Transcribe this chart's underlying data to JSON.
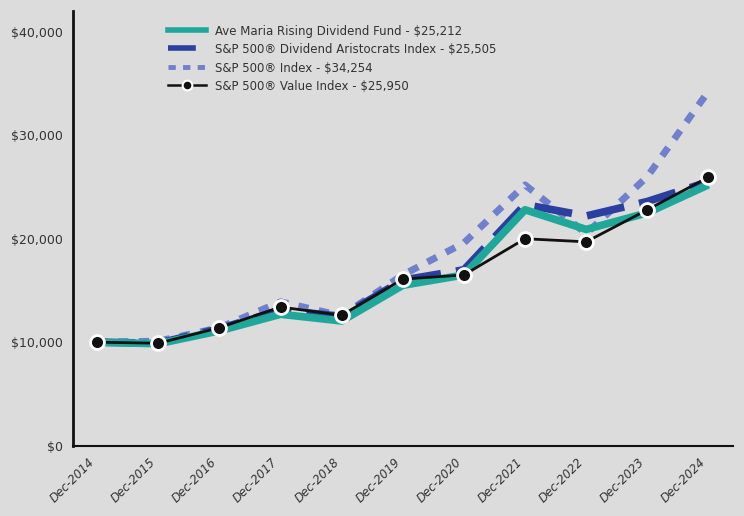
{
  "x_labels": [
    "Dec-2014",
    "Dec-2015",
    "Dec-2016",
    "Dec-2017",
    "Dec-2018",
    "Dec-2019",
    "Dec-2020",
    "Dec-2021",
    "Dec-2022",
    "Dec-2023",
    "Dec-2024"
  ],
  "ave_maria": [
    10000,
    9850,
    11100,
    12700,
    12050,
    15500,
    16500,
    22800,
    20900,
    22500,
    25212
  ],
  "sp500_aristocrats": [
    10000,
    9900,
    11300,
    13100,
    12500,
    16000,
    17000,
    23300,
    22200,
    23600,
    25505
  ],
  "sp500_index": [
    10000,
    10100,
    11400,
    13900,
    12550,
    16500,
    19600,
    25200,
    20500,
    26000,
    34254
  ],
  "sp500_value": [
    10000,
    9900,
    11400,
    13400,
    12600,
    16100,
    16500,
    20000,
    19700,
    22800,
    25950
  ],
  "color_ave_maria": "#1fa89a",
  "color_aristocrats": "#2a3f9e",
  "color_sp500_index": "#7080cc",
  "color_sp500_value": "#111111",
  "background_color": "#dcdcdc",
  "ylim": [
    0,
    42000
  ],
  "yticks": [
    0,
    10000,
    20000,
    30000,
    40000
  ],
  "legend_labels": [
    "Ave Maria Rising Dividend Fund - $25,212",
    "S&P 500® Dividend Aristocrats Index - $25,505",
    "S&P 500® Index - $34,254",
    "S&P 500® Value Index - $25,950"
  ]
}
